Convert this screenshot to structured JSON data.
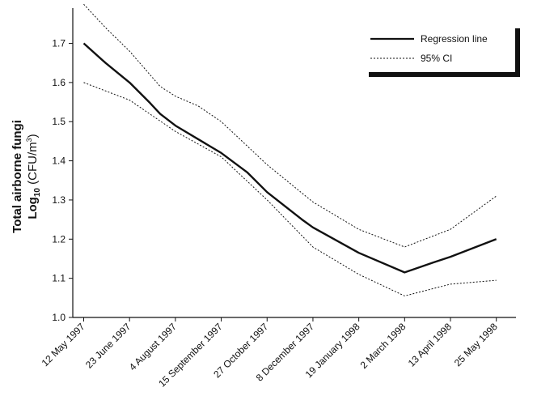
{
  "chart_data": {
    "type": "line",
    "title": "",
    "xlabel": "",
    "ylabel": {
      "line1": "Total airborne fungi",
      "line2_main": "Log",
      "line2_sub": "10",
      "line2_unit": " (CFU/m",
      "line2_sup": "3",
      "line2_close": ")"
    },
    "categories": [
      "12 May 1997",
      "23 June 1997",
      "4 August 1997",
      "15 September 1997",
      "27 October 1997",
      "8 December 1997",
      "19 January 1998",
      "2 March 1998",
      "13 April 1998",
      "25 May 1998"
    ],
    "x": [
      0,
      42,
      84,
      126,
      168,
      210,
      252,
      294,
      336,
      378
    ],
    "yticks": [
      "1.0",
      "1.1",
      "1.2",
      "1.3",
      "1.4",
      "1.5",
      "1.6",
      "1.7"
    ],
    "ylim": [
      1.0,
      1.79
    ],
    "xlim": [
      -10,
      396
    ],
    "grid": false,
    "legend_position": "top-right",
    "series": [
      {
        "name": "Regression line",
        "style": "solid",
        "points": [
          [
            0,
            1.7
          ],
          [
            20,
            1.65
          ],
          [
            42,
            1.6
          ],
          [
            60,
            1.55
          ],
          [
            70,
            1.52
          ],
          [
            84,
            1.49
          ],
          [
            126,
            1.42
          ],
          [
            150,
            1.37
          ],
          [
            168,
            1.32
          ],
          [
            200,
            1.25
          ],
          [
            210,
            1.23
          ],
          [
            252,
            1.165
          ],
          [
            294,
            1.115
          ],
          [
            320,
            1.14
          ],
          [
            336,
            1.155
          ],
          [
            378,
            1.2
          ]
        ]
      },
      {
        "name": "95% CI",
        "style": "dotted",
        "points": [
          [
            0,
            1.8
          ],
          [
            20,
            1.74
          ],
          [
            42,
            1.68
          ],
          [
            70,
            1.59
          ],
          [
            84,
            1.565
          ],
          [
            105,
            1.54
          ],
          [
            126,
            1.5
          ],
          [
            168,
            1.39
          ],
          [
            210,
            1.295
          ],
          [
            252,
            1.225
          ],
          [
            294,
            1.18
          ],
          [
            336,
            1.225
          ],
          [
            378,
            1.31
          ]
        ]
      },
      {
        "name": "95% CI",
        "style": "dotted",
        "points": [
          [
            0,
            1.6
          ],
          [
            42,
            1.555
          ],
          [
            84,
            1.475
          ],
          [
            126,
            1.41
          ],
          [
            168,
            1.3
          ],
          [
            210,
            1.18
          ],
          [
            252,
            1.11
          ],
          [
            294,
            1.055
          ],
          [
            336,
            1.085
          ],
          [
            378,
            1.095
          ]
        ]
      }
    ],
    "colors": {
      "line": "#111111",
      "axis": "#111111"
    }
  }
}
